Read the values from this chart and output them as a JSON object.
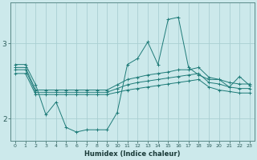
{
  "xlabel": "Humidex (Indice chaleur)",
  "background_color": "#cce9eb",
  "grid_color": "#aacfd2",
  "line_color": "#1e7b78",
  "x_ticks": [
    0,
    1,
    2,
    3,
    4,
    5,
    6,
    7,
    8,
    9,
    10,
    11,
    12,
    13,
    14,
    15,
    16,
    17,
    18,
    19,
    20,
    21,
    22,
    23
  ],
  "ylim": [
    1.7,
    3.55
  ],
  "xlim": [
    -0.5,
    23.5
  ],
  "line1_x": [
    0,
    1,
    2,
    3,
    4,
    5,
    6,
    7,
    8,
    9,
    10,
    11,
    12,
    13,
    14,
    15,
    16,
    17,
    18,
    19,
    20,
    21,
    22,
    23
  ],
  "line1_y": [
    2.72,
    2.72,
    2.45,
    2.05,
    2.22,
    1.88,
    1.82,
    1.85,
    1.85,
    1.85,
    2.08,
    2.72,
    2.8,
    3.02,
    2.72,
    3.32,
    3.35,
    2.68,
    2.58,
    2.52,
    2.52,
    2.42,
    2.56,
    2.44
  ],
  "line2_x": [
    0,
    1,
    2,
    3,
    4,
    5,
    6,
    7,
    8,
    9,
    10,
    11,
    12,
    13,
    14,
    15,
    16,
    17,
    18,
    19,
    20,
    21,
    22,
    23
  ],
  "line2_y": [
    2.68,
    2.68,
    2.38,
    2.38,
    2.38,
    2.38,
    2.38,
    2.38,
    2.38,
    2.38,
    2.45,
    2.52,
    2.55,
    2.58,
    2.6,
    2.62,
    2.65,
    2.65,
    2.68,
    2.55,
    2.52,
    2.48,
    2.46,
    2.46
  ],
  "line3_x": [
    0,
    1,
    2,
    3,
    4,
    5,
    6,
    7,
    8,
    9,
    10,
    11,
    12,
    13,
    14,
    15,
    16,
    17,
    18,
    19,
    20,
    21,
    22,
    23
  ],
  "line3_y": [
    2.65,
    2.65,
    2.35,
    2.35,
    2.35,
    2.35,
    2.35,
    2.35,
    2.35,
    2.35,
    2.4,
    2.45,
    2.48,
    2.5,
    2.52,
    2.54,
    2.56,
    2.58,
    2.6,
    2.48,
    2.46,
    2.42,
    2.4,
    2.4
  ],
  "line4_x": [
    0,
    1,
    2,
    3,
    4,
    5,
    6,
    7,
    8,
    9,
    10,
    11,
    12,
    13,
    14,
    15,
    16,
    17,
    18,
    19,
    20,
    21,
    22,
    23
  ],
  "line4_y": [
    2.6,
    2.6,
    2.32,
    2.32,
    2.32,
    2.32,
    2.32,
    2.32,
    2.32,
    2.32,
    2.35,
    2.38,
    2.4,
    2.42,
    2.44,
    2.46,
    2.48,
    2.5,
    2.52,
    2.42,
    2.38,
    2.36,
    2.34,
    2.34
  ]
}
